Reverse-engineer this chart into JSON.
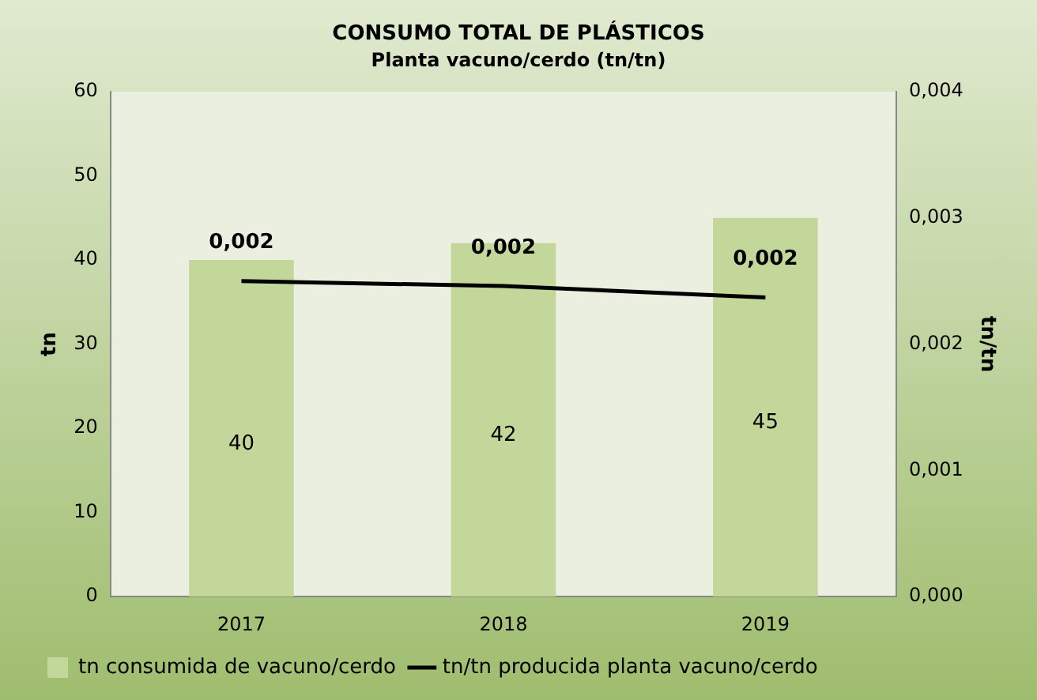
{
  "chart_data": {
    "type": "bar",
    "title": "CONSUMO TOTAL DE PLÁSTICOS",
    "subtitle": "Planta vacuno/cerdo (tn/tn)",
    "categories": [
      "2017",
      "2018",
      "2019"
    ],
    "series": [
      {
        "name": "tn consumida de vacuno/cerdo",
        "color": "#c4d79b",
        "values": [
          40,
          42,
          45
        ],
        "value_labels": [
          "40",
          "42",
          "45"
        ]
      },
      {
        "name": "tn/tn producida planta vacuno/cerdo",
        "type": "line",
        "axis": "y2",
        "color": "#000000",
        "values": [
          0.0025,
          0.00246,
          0.00237
        ],
        "value_labels": [
          "0,002",
          "0,002",
          "0,002"
        ]
      }
    ],
    "ylabel": "tn",
    "y2label": "tn/tn",
    "ylim": [
      0,
      60
    ],
    "yticks": [
      0,
      10,
      20,
      30,
      40,
      50,
      60
    ],
    "y2lim": [
      0,
      0.004
    ],
    "y2ticks": [
      {
        "value": 0,
        "label": "0,000"
      },
      {
        "value": 0.001,
        "label": "0,001"
      },
      {
        "value": 0.002,
        "label": "0,002"
      },
      {
        "value": 0.003,
        "label": "0,003"
      },
      {
        "value": 0.004,
        "label": "0,004"
      }
    ],
    "grid": false,
    "legend": "bottom",
    "marker": "none",
    "line_style": "solid"
  }
}
